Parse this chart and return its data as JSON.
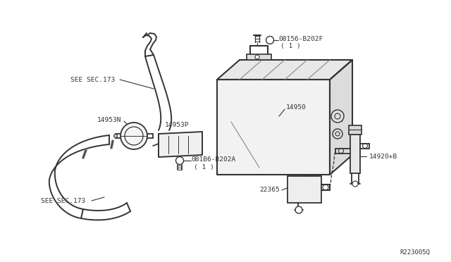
{
  "bg_color": "#ffffff",
  "lc": "#333333",
  "tc": "#333333",
  "figsize": [
    6.4,
    3.72
  ],
  "dpi": 100,
  "diagram_id": "R223005Q",
  "labels": {
    "sec173_top": "SEE SEC.173",
    "sec173_bot": "SEE SEC.173",
    "n14953N": "14953N",
    "n14953P": "14953P",
    "n14950": "14950",
    "n14920B": "14920+B",
    "n22365": "22365",
    "bolt_top_label": "08156-B202F",
    "bolt_top_qty": "( 1 )",
    "bolt_bot_label": "0B1B6-B202A",
    "bolt_bot_qty": "( 1 )"
  }
}
